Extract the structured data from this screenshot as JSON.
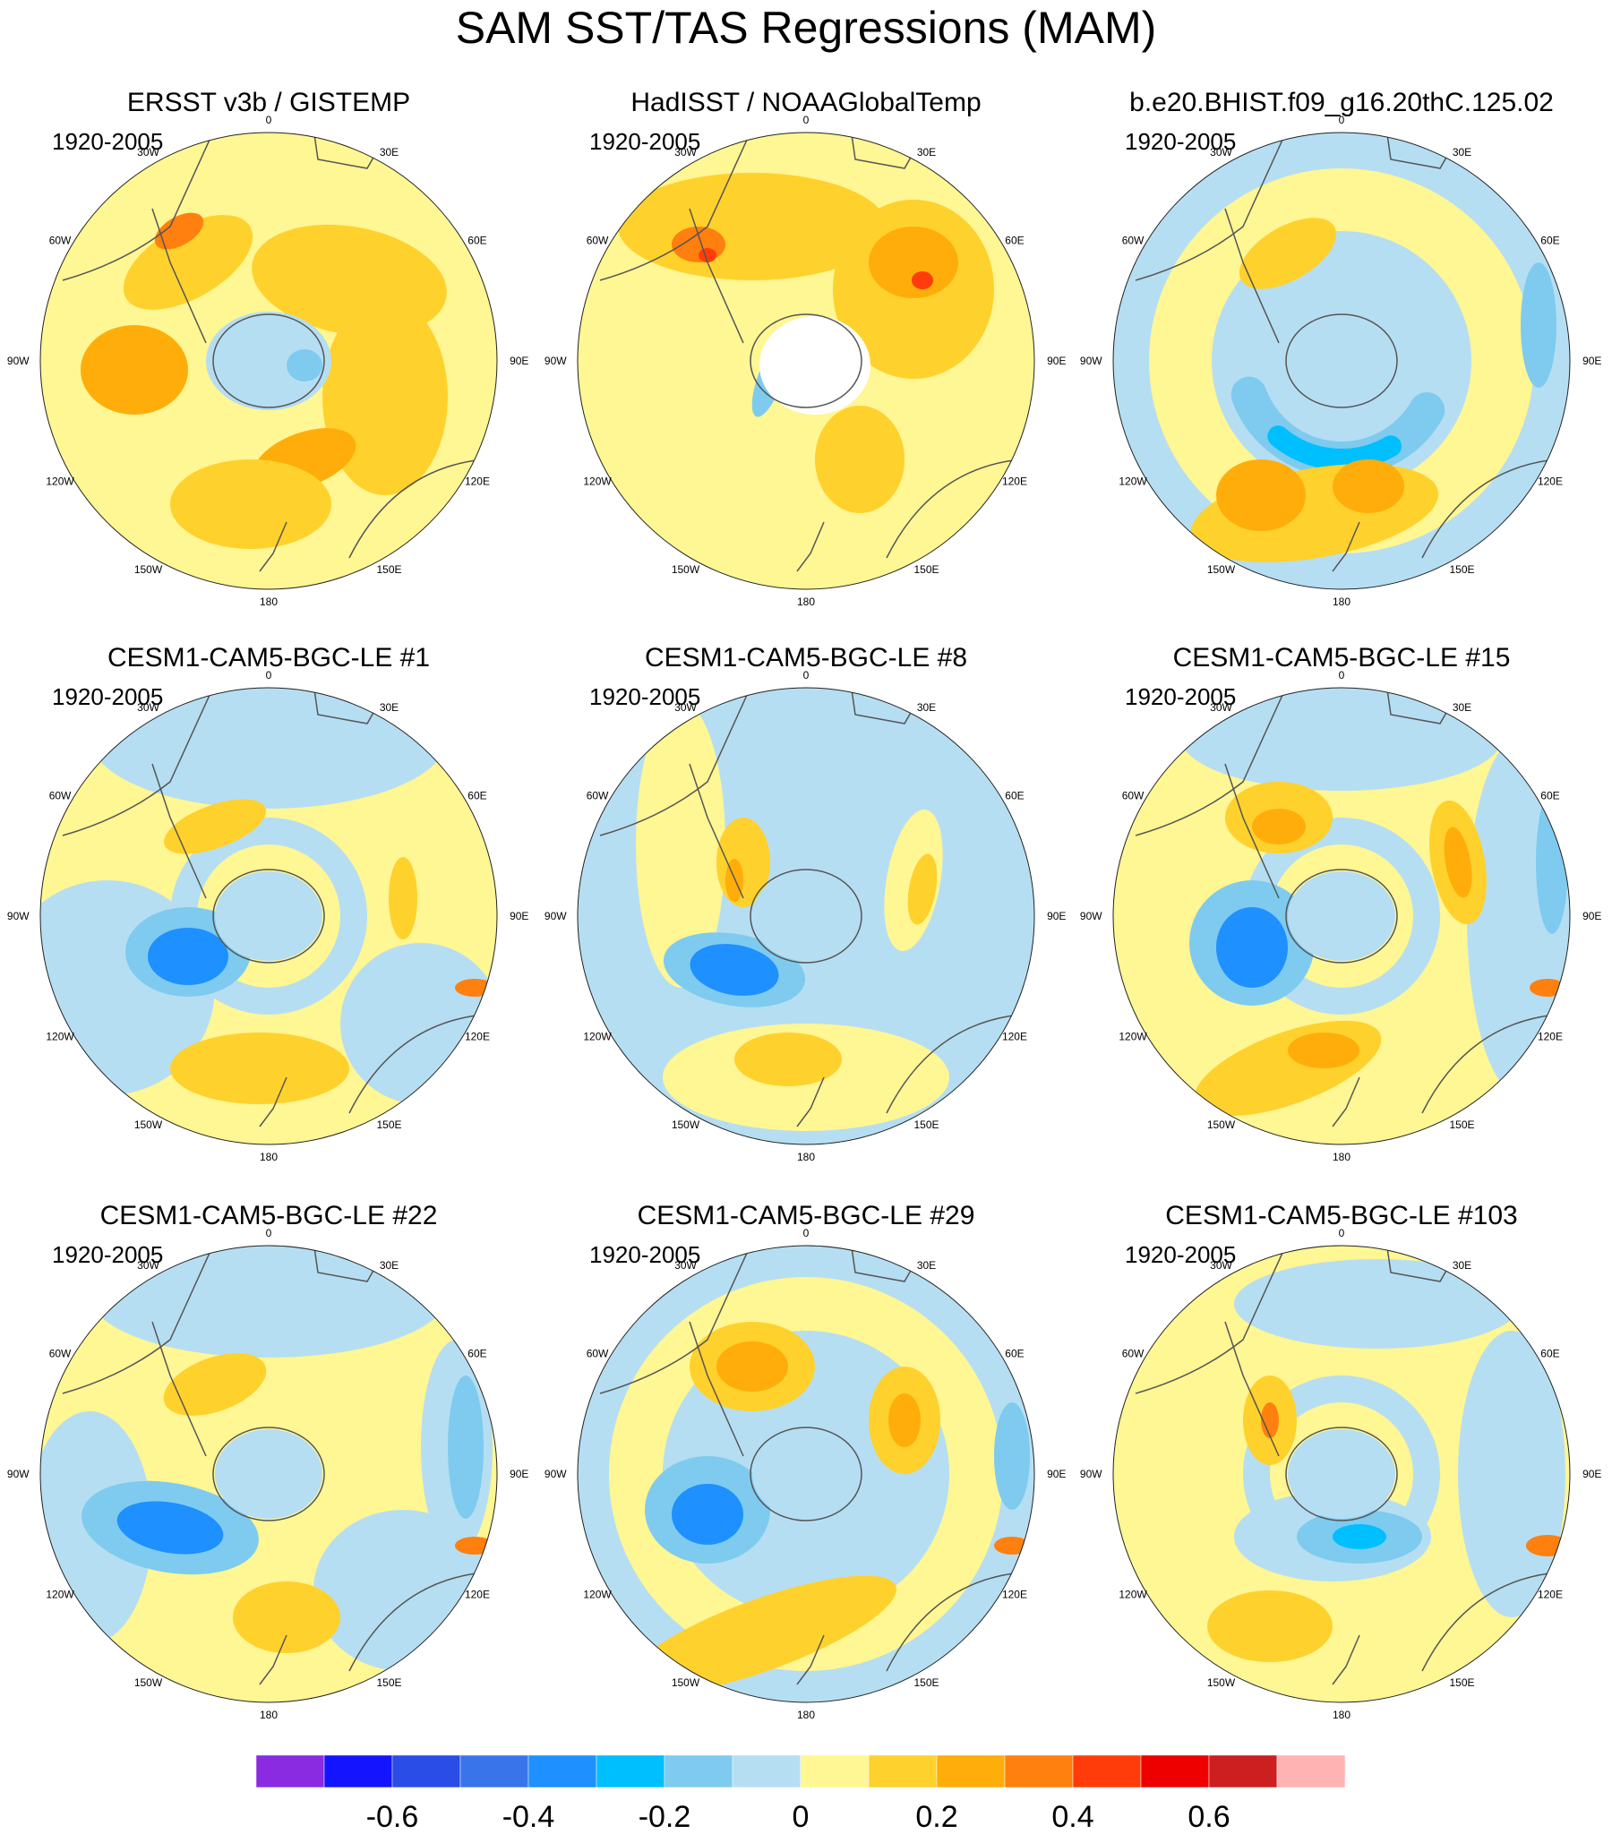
{
  "title": "SAM SST/TAS Regressions (MAM)",
  "period_label": "1920-2005",
  "longitude_labels": [
    "0",
    "30E",
    "60E",
    "90E",
    "120E",
    "150E",
    "180",
    "150W",
    "120W",
    "90W",
    "60W",
    "30W"
  ],
  "panels": [
    {
      "title": "ERSST v3b / GISTEMP",
      "period": "1920-2005"
    },
    {
      "title": "HadISST / NOAAGlobalTemp",
      "period": "1920-2005"
    },
    {
      "title": "b.e20.BHIST.f09_g16.20thC.125.02",
      "period": "1920-2005"
    },
    {
      "title": "CESM1-CAM5-BGC-LE #1",
      "period": "1920-2005"
    },
    {
      "title": "CESM1-CAM5-BGC-LE #8",
      "period": "1920-2005"
    },
    {
      "title": "CESM1-CAM5-BGC-LE #15",
      "period": "1920-2005"
    },
    {
      "title": "CESM1-CAM5-BGC-LE #22",
      "period": "1920-2005"
    },
    {
      "title": "CESM1-CAM5-BGC-LE #29",
      "period": "1920-2005"
    },
    {
      "title": "CESM1-CAM5-BGC-LE #103",
      "period": "1920-2005"
    }
  ],
  "colorbar": {
    "colors": [
      "#8a2be2",
      "#1414ff",
      "#2a4de8",
      "#3a74ea",
      "#1e90ff",
      "#00bfff",
      "#7ecbef",
      "#b6def2",
      "#fff694",
      "#ffd12c",
      "#ffad0a",
      "#ff7f0f",
      "#ff3c0a",
      "#ee0000",
      "#cd1f1f",
      "#ffb3b3"
    ],
    "tick_labels": [
      "-0.6",
      "-0.4",
      "-0.2",
      "0",
      "0.2",
      "0.4",
      "0.6"
    ]
  },
  "palette": {
    "neg_weak": "#b6def2",
    "neg_mid": "#7ecbef",
    "neg_strong": "#00bfff",
    "neg_stronger": "#1e90ff",
    "pos_weak": "#fff694",
    "pos_mid": "#ffd12c",
    "pos_strong": "#ffad0a",
    "pos_stronger": "#ff7f0f",
    "pos_max": "#ff3c0a",
    "missing": "#ffffff"
  }
}
